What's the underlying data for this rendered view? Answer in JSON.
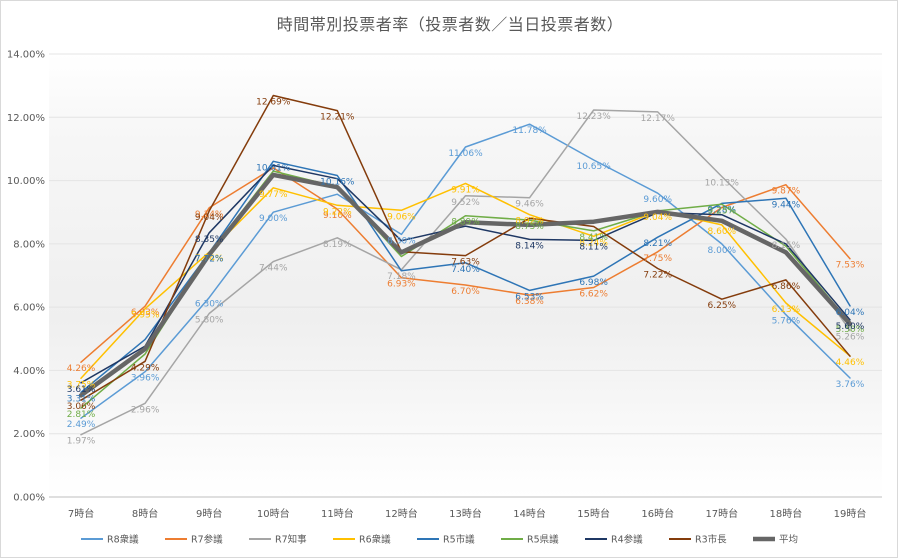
{
  "chart_data": {
    "type": "line",
    "title": "時間帯別投票者率（投票者数／当日投票者数）",
    "xlabel": "",
    "ylabel": "",
    "categories": [
      "7時台",
      "8時台",
      "9時台",
      "10時台",
      "11時台",
      "12時台",
      "13時台",
      "14時台",
      "15時台",
      "16時台",
      "17時台",
      "18時台",
      "19時台"
    ],
    "ylim": [
      0,
      14
    ],
    "ytick_labels": [
      "0.00%",
      "2.00%",
      "4.00%",
      "6.00%",
      "8.00%",
      "10.00%",
      "12.00%",
      "14.00%"
    ],
    "grid": "horizontal",
    "legend": "bottom",
    "series": [
      {
        "name": "R8衆議",
        "color": "#5b9bd5",
        "width": 1.5,
        "values": [
          2.49,
          3.96,
          6.3,
          9.0,
          9.57,
          8.3,
          11.06,
          11.78,
          10.65,
          9.6,
          8.0,
          5.76,
          3.76
        ],
        "labels": [
          "2.49%",
          "3.96%",
          "6.30%",
          "9.00%",
          "",
          "8.30%",
          "11.06%",
          "11.78%",
          "10.65%",
          "9.60%",
          "8.00%",
          "5.76%",
          "3.76%"
        ]
      },
      {
        "name": "R7参議",
        "color": "#ed7d31",
        "width": 1.5,
        "values": [
          4.26,
          6.03,
          9.14,
          10.4,
          9.1,
          6.93,
          6.7,
          6.38,
          6.62,
          7.75,
          9.15,
          9.87,
          7.53
        ],
        "labels": [
          "4.26%",
          "6.03%",
          "9.14%",
          "",
          "9.10%",
          "6.93%",
          "6.70%",
          "6.38%",
          "6.62%",
          "7.75%",
          "",
          "9.87%",
          "7.53%"
        ]
      },
      {
        "name": "R7知事",
        "color": "#a5a5a5",
        "width": 1.5,
        "values": [
          1.97,
          2.96,
          5.8,
          7.44,
          8.19,
          7.18,
          9.52,
          9.46,
          12.23,
          12.17,
          10.13,
          8.15,
          5.26
        ],
        "labels": [
          "1.97%",
          "2.96%",
          "5.80%",
          "7.44%",
          "8.19%",
          "7.18%",
          "9.52%",
          "9.46%",
          "12.23%",
          "12.17%",
          "10.13%",
          "8.15%",
          "5.26%"
        ]
      },
      {
        "name": "R6衆議",
        "color": "#ffc000",
        "width": 1.5,
        "values": [
          3.75,
          5.95,
          7.74,
          9.77,
          9.22,
          9.06,
          9.91,
          8.92,
          8.24,
          9.04,
          8.6,
          6.13,
          4.46
        ],
        "labels": [
          "3.75%",
          "5.95%",
          "7.74%",
          "9.77%",
          "9.22%",
          "9.06%",
          "9.91%",
          "8.92%",
          "8.24%",
          "9.04%",
          "8.60%",
          "6.13%",
          "4.46%"
        ]
      },
      {
        "name": "R5市議",
        "color": "#2e75b6",
        "width": 1.5,
        "values": [
          3.31,
          4.98,
          7.72,
          10.61,
          10.16,
          7.15,
          7.4,
          6.53,
          6.98,
          8.21,
          9.28,
          9.44,
          6.04
        ],
        "labels": [
          "3.31%",
          "",
          "7.72%",
          "10.61%",
          "10.16%",
          "",
          "7.40%",
          "6.53%",
          "6.98%",
          "8.21%",
          "9.28%",
          "9.44%",
          "6.04%"
        ]
      },
      {
        "name": "R5県議",
        "color": "#70ad47",
        "width": 1.5,
        "values": [
          2.81,
          4.52,
          7.7,
          10.3,
          9.8,
          7.6,
          8.89,
          8.75,
          8.41,
          9.04,
          9.25,
          7.93,
          5.5
        ],
        "labels": [
          "2.81%",
          "",
          "",
          "",
          "",
          "",
          "8.89%",
          "8.75%",
          "8.41%",
          "",
          "9.25%",
          "",
          "5.50%"
        ]
      },
      {
        "name": "R4参議",
        "color": "#1f3864",
        "width": 1.5,
        "values": [
          3.61,
          4.77,
          8.35,
          10.48,
          10.06,
          8.1,
          8.56,
          8.14,
          8.11,
          8.99,
          8.92,
          8.0,
          5.6
        ],
        "labels": [
          "3.61%",
          "",
          "8.35%",
          "",
          "",
          "",
          "",
          "8.14%",
          "8.11%",
          "",
          "",
          "",
          "5.60%"
        ]
      },
      {
        "name": "R3市長",
        "color": "#843c0c",
        "width": 1.5,
        "values": [
          3.06,
          4.29,
          9.04,
          12.69,
          12.21,
          7.75,
          7.63,
          8.81,
          8.55,
          7.22,
          6.25,
          6.86,
          4.45
        ],
        "labels": [
          "3.06%",
          "4.29%",
          "9.04%",
          "12.69%",
          "12.21%",
          "",
          "7.63%",
          "",
          "",
          "7.22%",
          "6.25%",
          "6.86%",
          ""
        ]
      },
      {
        "name": "平均",
        "color": "#666666",
        "width": 4.5,
        "values": [
          3.21,
          4.68,
          7.66,
          10.18,
          9.79,
          7.73,
          8.68,
          8.6,
          8.7,
          9.01,
          8.73,
          7.73,
          5.47
        ],
        "labels": [
          "",
          "",
          "",
          "",
          "",
          "",
          "",
          "",
          "",
          "",
          "",
          "",
          ""
        ]
      }
    ]
  }
}
